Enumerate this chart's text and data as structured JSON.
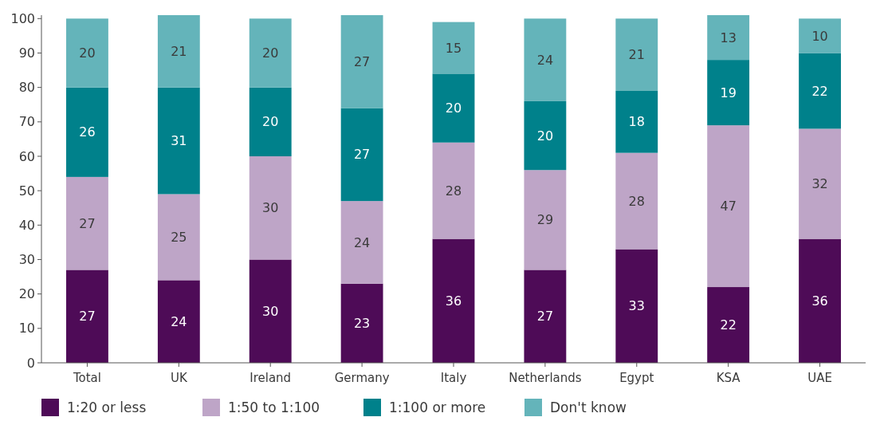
{
  "chart_data": {
    "type": "bar",
    "stacked": true,
    "categories": [
      "Total",
      "UK",
      "Ireland",
      "Germany",
      "Italy",
      "Netherlands",
      "Egypt",
      "KSA",
      "UAE"
    ],
    "series": [
      {
        "name": "1:20 or less",
        "color": "#4e0b57",
        "values": [
          27,
          24,
          30,
          23,
          36,
          27,
          33,
          22,
          36
        ]
      },
      {
        "name": "1:50 to 1:100",
        "color": "#bea5c7",
        "values": [
          27,
          25,
          30,
          24,
          28,
          29,
          28,
          47,
          32
        ]
      },
      {
        "name": "1:100 or more",
        "color": "#00818b",
        "values": [
          26,
          31,
          20,
          27,
          20,
          20,
          18,
          19,
          22
        ]
      },
      {
        "name": "Don't know",
        "color": "#64b4ba",
        "values": [
          20,
          21,
          20,
          27,
          15,
          24,
          21,
          13,
          10
        ]
      }
    ],
    "ylim": [
      0,
      101
    ],
    "yticks": [
      0,
      10,
      20,
      30,
      40,
      50,
      60,
      70,
      80,
      90,
      100
    ],
    "grid": false,
    "legend": "bottom",
    "data_labels": true
  }
}
